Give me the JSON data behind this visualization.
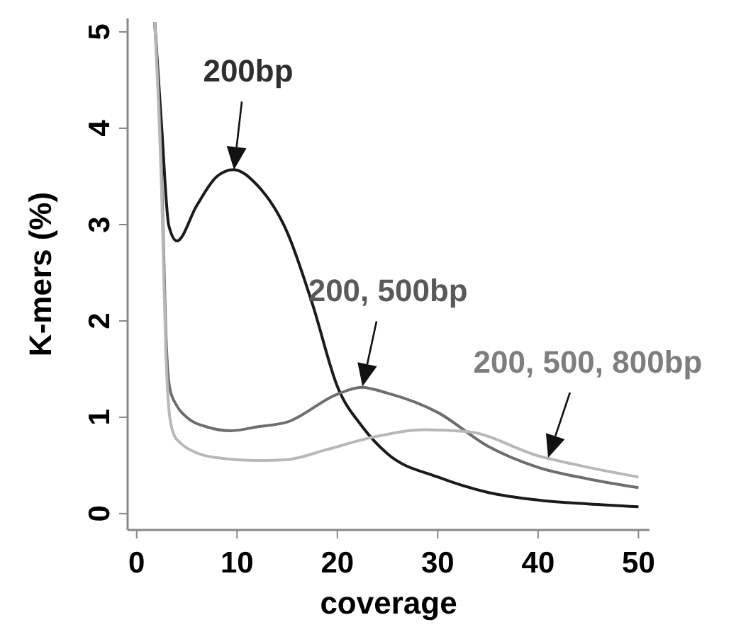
{
  "chart_data": {
    "type": "line",
    "xlabel": "coverage",
    "ylabel": "K-mers (%)",
    "xlim": [
      -0.9,
      51.1
    ],
    "ylim": [
      -0.17,
      5.14
    ],
    "xticks": [
      0,
      10,
      20,
      30,
      40,
      50
    ],
    "yticks": [
      0,
      1,
      2,
      3,
      4,
      5
    ],
    "grid": false,
    "marker": "none",
    "line_style": "solid",
    "series": [
      {
        "color": "#1a1a1a",
        "x": [
          1.8,
          2.5,
          3.2,
          4,
          6,
          8,
          9.65,
          12,
          15,
          17.5,
          20,
          22.5,
          25,
          30,
          35,
          40,
          45,
          50
        ],
        "values": [
          5.1,
          4.0,
          2.99,
          2.83,
          3.2,
          3.5,
          3.57,
          3.41,
          2.92,
          2.18,
          1.32,
          0.9,
          0.62,
          0.38,
          0.22,
          0.14,
          0.1,
          0.07
        ]
      },
      {
        "color": "#6e6e6e",
        "x": [
          1.8,
          2.5,
          2.9,
          3.3,
          4,
          5,
          7,
          9.4,
          12,
          15,
          20,
          22.4,
          25,
          30,
          35,
          40,
          45,
          50
        ],
        "values": [
          5.1,
          3.5,
          1.9,
          1.3,
          1.12,
          1.0,
          0.9,
          0.86,
          0.9,
          0.95,
          1.24,
          1.31,
          1.25,
          1.05,
          0.7,
          0.48,
          0.36,
          0.27
        ]
      },
      {
        "color": "#b8b8b8",
        "x": [
          1.8,
          2.5,
          2.9,
          3.3,
          3.8,
          4.2,
          6,
          8,
          12.2,
          15,
          18.8,
          23.8,
          28.7,
          33,
          40,
          45,
          50
        ],
        "values": [
          5.1,
          3.3,
          1.7,
          1.0,
          0.8,
          0.75,
          0.63,
          0.58,
          0.55,
          0.56,
          0.66,
          0.8,
          0.87,
          0.85,
          0.6,
          0.48,
          0.38
        ]
      }
    ],
    "annotations": [
      {
        "text": "200bp",
        "x": 9.7,
        "y": 3.57
      },
      {
        "text": "200, 500bp",
        "x": 22.5,
        "y": 1.32
      },
      {
        "text": "200, 500, 800bp",
        "x": 41,
        "y": 0.58
      }
    ]
  }
}
